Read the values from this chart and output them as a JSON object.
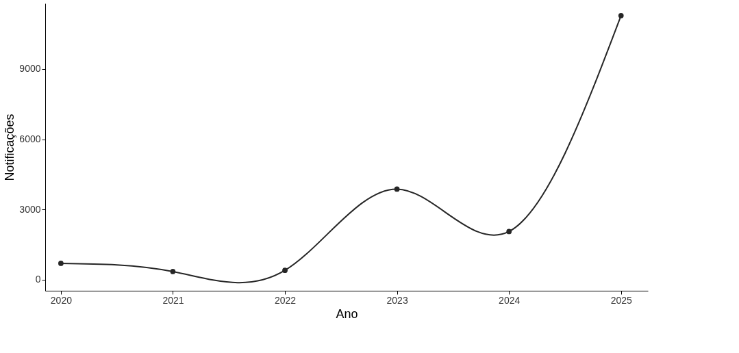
{
  "chart_data": {
    "type": "line",
    "xlabel": "Ano",
    "ylabel": "Notificações",
    "x": [
      2020,
      2021,
      2022,
      2023,
      2024,
      2025
    ],
    "series": [
      {
        "color": "#262626",
        "values": [
          700,
          350,
          400,
          3870,
          2060,
          11280
        ]
      }
    ],
    "xlim": [
      2019.86,
      2025.24
    ],
    "xticks": [
      2020,
      2021,
      2022,
      2023,
      2024,
      2025
    ],
    "ylim": [
      -470,
      11800
    ],
    "yticks": [
      0,
      3000,
      6000,
      9000
    ],
    "grid": false,
    "legend": false,
    "marker": "circle",
    "line_style": "solid"
  }
}
